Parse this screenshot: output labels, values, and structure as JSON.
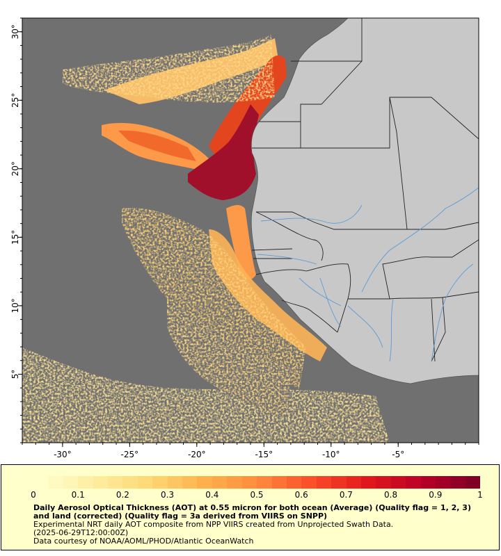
{
  "map": {
    "lon_range": [
      -33,
      1
    ],
    "lat_range": [
      0,
      31
    ],
    "x_ticks": [
      "-30°",
      "-25°",
      "-20°",
      "-15°",
      "-10°",
      "-5°"
    ],
    "y_ticks": [
      "30°",
      "25°",
      "20°",
      "15°",
      "10°",
      "5°"
    ],
    "colors": {
      "ocean_nodata": "#707070",
      "land": "#c8c8c8",
      "borders": "#222222",
      "rivers": "#5b9bd5"
    }
  },
  "legend": {
    "scale_labels": [
      "0",
      "0.1",
      "0.2",
      "0.3",
      "0.4",
      "0.5",
      "0.6",
      "0.7",
      "0.8",
      "0.9",
      "1"
    ],
    "colors": [
      "#ffffcc",
      "#ffeda0",
      "#fed976",
      "#feb24c",
      "#fd8d3c",
      "#fc4e2a",
      "#e31a1c",
      "#bd0026",
      "#800026"
    ],
    "title": "Daily Aerosol Optical Thickness (AOT) at 0.55 micron for both ocean (Average) (Quality flag = 1, 2, 3) and land (corrected) (Quality flag = 3a derived from VIIRS on SNPP)",
    "line1": "Experimental NRT daily AOT composite from NPP VIIRS created from Unprojected Swath Data.",
    "line2": "(2025-06-29T12:00:00Z)",
    "line3": "Data courtesy of NOAA/AOML/PHOD/Atlantic OceanWatch"
  }
}
